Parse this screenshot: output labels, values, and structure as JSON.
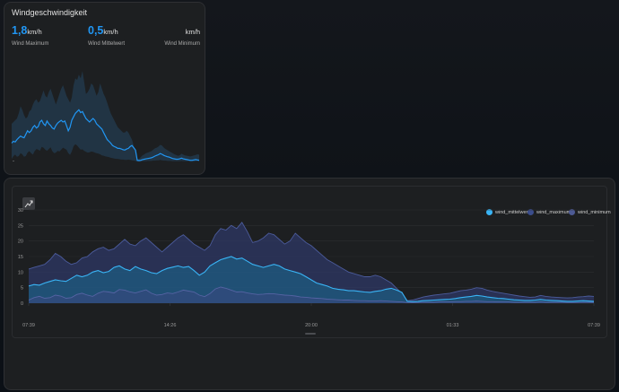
{
  "top_card": {
    "title": "Windgeschwindigkeit",
    "stats": [
      {
        "value": "1,8",
        "unit": "km/h",
        "label": "Wind Maximum"
      },
      {
        "value": "0,5",
        "unit": "km/h",
        "label": "Wind Mittelwert"
      },
      {
        "value": "",
        "unit": "km/h",
        "label": "Wind Minimum"
      }
    ],
    "corner_text": "-"
  },
  "colors": {
    "accent": "#2196f3",
    "mittelwert": "#39b4f5",
    "maximum": "#3b4d8c",
    "minimum": "#4d5a94"
  },
  "toolbar": {
    "zoom_icon": "chart-zoom-icon"
  },
  "chart_data": {
    "type": "area",
    "x_ticks": [
      "07:39",
      "14:26",
      "20:00",
      "01:33",
      "07:39"
    ],
    "y_ticks": [
      0,
      5,
      10,
      15,
      20,
      25,
      30
    ],
    "ylim": [
      0,
      30
    ],
    "legend_position": "top-right",
    "grid": true,
    "series": [
      {
        "name": "wind_mittelwert",
        "values": [
          5.5,
          6,
          5.8,
          6.5,
          7,
          7.5,
          7.2,
          7,
          8,
          9,
          8.5,
          9,
          10,
          10.5,
          9.8,
          10.2,
          11.5,
          12,
          11,
          10.5,
          11.8,
          11,
          10.5,
          9.8,
          9.5,
          10.5,
          11.2,
          11.6,
          12,
          11.5,
          11.8,
          10.5,
          9,
          10,
          12,
          13,
          14,
          14.5,
          15,
          14.2,
          14.5,
          13.5,
          12.5,
          12,
          11.5,
          12,
          12.5,
          12,
          11,
          10.5,
          10,
          9.5,
          8.5,
          7.5,
          6.5,
          6,
          5.5,
          4.8,
          4.5,
          4.3,
          4,
          4,
          3.8,
          3.6,
          3.5,
          3.8,
          4,
          4.5,
          4.8,
          4.2,
          3.5,
          0.6,
          0.5,
          0.6,
          0.8,
          0.9,
          1,
          1.1,
          1.2,
          1.3,
          1.5,
          1.8,
          2,
          2.2,
          2.5,
          2.3,
          2,
          1.8,
          1.6,
          1.5,
          1.3,
          1.1,
          1,
          0.9,
          0.9,
          1,
          1.2,
          1,
          0.9,
          0.8,
          0.7,
          0.6,
          0.6,
          0.7,
          0.8,
          0.7,
          0.6
        ]
      },
      {
        "name": "wind_maximum",
        "values": [
          11,
          11.5,
          12,
          12.5,
          14,
          16,
          15,
          13.5,
          12.5,
          13,
          14.5,
          15,
          16.5,
          17.5,
          18,
          17,
          17.5,
          19,
          20.5,
          19,
          18.5,
          20,
          21,
          19.5,
          18,
          16.5,
          18,
          19.5,
          21,
          22,
          20.5,
          19,
          18,
          17,
          18.5,
          22,
          24,
          23.5,
          25,
          24,
          26,
          23,
          19.5,
          20,
          21,
          22.5,
          22,
          20.5,
          19,
          20,
          22.5,
          21,
          19.5,
          18.5,
          17,
          15.5,
          14,
          13,
          12,
          11,
          10,
          9.5,
          9,
          8.5,
          8.5,
          9,
          8.5,
          7.5,
          6.5,
          4.8,
          3.2,
          0.8,
          1,
          1.5,
          2,
          2.3,
          2.6,
          2.8,
          3,
          3.2,
          3.6,
          4,
          4.2,
          4.5,
          5,
          4.8,
          4.2,
          3.8,
          3.5,
          3.2,
          2.9,
          2.6,
          2.3,
          2.1,
          1.9,
          2,
          2.5,
          2.2,
          2,
          1.9,
          1.8,
          1.7,
          1.8,
          2,
          2.1,
          2.3,
          2.2
        ]
      },
      {
        "name": "wind_minimum",
        "values": [
          1,
          1.8,
          2.2,
          1.6,
          1.8,
          2.6,
          2.3,
          1.6,
          1.8,
          2.8,
          3.2,
          2.6,
          2.2,
          3.2,
          3.8,
          3.6,
          3.3,
          4.4,
          4.2,
          3.6,
          3.3,
          3.8,
          4.3,
          3.2,
          2.6,
          2.8,
          3.3,
          3.1,
          3.6,
          4.2,
          3.9,
          3.6,
          2.6,
          2.1,
          3.1,
          4.6,
          5.2,
          4.8,
          4.2,
          3.6,
          3.7,
          3.3,
          3,
          2.8,
          2.9,
          3.1,
          3,
          2.8,
          2.6,
          2.5,
          2.3,
          2,
          1.9,
          1.7,
          1.6,
          1.5,
          1.3,
          1.2,
          1.1,
          1,
          1,
          0.9,
          0.8,
          0.8,
          0.7,
          0.7,
          0.8,
          0.7,
          0.6,
          0.5,
          0.4,
          0.2,
          0.2,
          0.2,
          0.3,
          0.3,
          0.3,
          0.4,
          0.4,
          0.4,
          0.5,
          0.5,
          0.6,
          0.6,
          0.7,
          0.6,
          0.5,
          0.5,
          0.4,
          0.4,
          0.4,
          0.3,
          0.3,
          0.3,
          0.3,
          0.3,
          0.4,
          0.3,
          0.3,
          0.3,
          0.3,
          0.2,
          0.2,
          0.2,
          0.3,
          0.3,
          0.3
        ]
      }
    ]
  }
}
